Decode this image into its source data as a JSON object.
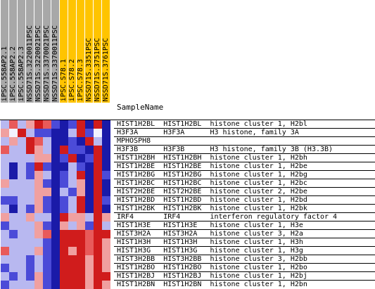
{
  "columns": [
    {
      "label": "iPSC.558AP2.1",
      "highlight": false
    },
    {
      "label": "iPSC.558AP2.2",
      "highlight": false
    },
    {
      "label": "iPSC.558AP2.3",
      "highlight": false
    },
    {
      "label": "NSSD71S.3220011PSC",
      "highlight": false
    },
    {
      "label": "NSSD71S.3220021PSC",
      "highlight": false
    },
    {
      "label": "NSSD71S.3370021PSC",
      "highlight": false
    },
    {
      "label": "NSSD71S.3370011PSC",
      "highlight": false
    },
    {
      "label": "iPSC.S78.1",
      "highlight": true
    },
    {
      "label": "iPSC.S78.2",
      "highlight": true
    },
    {
      "label": "iPSC.S78.3",
      "highlight": true
    },
    {
      "label": "NSSD71S.3351PSC",
      "highlight": true
    },
    {
      "label": "NSSD71S.3751PSC",
      "highlight": true
    },
    {
      "label": "NSSD71S.3761PSC",
      "highlight": true
    }
  ],
  "sample_name_label": "SampleName",
  "rows": [
    {
      "text": "HIST1H2BL  HIST1H2BL  histone cluster 1, H2bl"
    },
    {
      "text": "H3F3A      H3F3A      H3 histone, family 3A"
    },
    {
      "text": "MPHOSPH8"
    },
    {
      "text": "H3F3B      H3F3B      H3 histone, family 3B (H3.3B)"
    },
    {
      "text": "HIST1H2BH  HIST1H2BH  histone cluster 1, H2bh"
    },
    {
      "text": "HIST1H2BE  HIST1H2BE  histone cluster 1, H2be"
    },
    {
      "text": "HIST1H2BG  HIST1H2BG  histone cluster 1, H2bg"
    },
    {
      "text": "HIST1H2BC  HIST1H2BC  histone cluster 1, H2bc"
    },
    {
      "text": "HIST2H2BE  HIST2H2BE  histone cluster 2, H2be"
    },
    {
      "text": "HIST1H2BD  HIST1H2BD  histone cluster 1, H2bd"
    },
    {
      "text": "HIST1H2BK  HIST1H2BK  histone cluster 1, H2bk"
    },
    {
      "text": "IRF4       IRF4       interferon regulatory factor 4"
    },
    {
      "text": "HIST1H3E   HIST1H3E   histone cluster 1, H3e"
    },
    {
      "text": "HIST3H2A   HIST3H2A   histone cluster 3, H2a"
    },
    {
      "text": "HIST1H3H   HIST1H3H   histone cluster 1, H3h"
    },
    {
      "text": "HIST1H3G   HIST1H3G   histone cluster 1, H3g"
    },
    {
      "text": "HIST3H2BB  HIST3H2BB  histone cluster 3, H2bb"
    },
    {
      "text": "HIST1H2BO  HIST1H2BO  histone cluster 1, H2bo"
    },
    {
      "text": "HIST1H2BJ  HIST1H2BJ  histone cluster 1, H2bj"
    },
    {
      "text": "HIST1H2BN  HIST1H2BN  histone cluster 1, H2bn"
    }
  ],
  "heatmap": [
    [
      "lb",
      "p",
      "lb",
      "lr",
      "r",
      "p",
      "b",
      "db",
      "b",
      "r",
      "db",
      "r",
      "db"
    ],
    [
      "lr",
      "w",
      "r",
      "lb",
      "b",
      "b",
      "db",
      "db",
      "lb",
      "r",
      "b",
      "w",
      "db"
    ],
    [
      "lb",
      "lr",
      "lb",
      "r",
      "p",
      "lb",
      "db",
      "db",
      "b",
      "db",
      "r",
      "lb",
      "db"
    ],
    [
      "p",
      "lb",
      "lb",
      "r",
      "lr",
      "lb",
      "db",
      "r",
      "b",
      "b",
      "db",
      "r",
      "db"
    ],
    [
      "lb",
      "lb",
      "lb",
      "lb",
      "lr",
      "lr",
      "db",
      "b",
      "r",
      "db",
      "b",
      "r",
      "db"
    ],
    [
      "lb",
      "db",
      "lb",
      "b",
      "r",
      "b",
      "db",
      "db",
      "lb",
      "b",
      "db",
      "r",
      "db"
    ],
    [
      "lb",
      "db",
      "lb",
      "b",
      "lr",
      "lb",
      "db",
      "b",
      "lb",
      "r",
      "db",
      "r",
      "b"
    ],
    [
      "lr",
      "lb",
      "lb",
      "lb",
      "lr",
      "b",
      "db",
      "b",
      "lb",
      "lr",
      "db",
      "r",
      "db"
    ],
    [
      "lb",
      "lb",
      "lb",
      "lb",
      "lr",
      "lr",
      "db",
      "lb",
      "b",
      "lr",
      "db",
      "r",
      "db"
    ],
    [
      "b",
      "b",
      "lb",
      "lb",
      "lr",
      "b",
      "db",
      "b",
      "lb",
      "r",
      "db",
      "r",
      "b"
    ],
    [
      "lb",
      "db",
      "lb",
      "b",
      "lr",
      "b",
      "db",
      "b",
      "lb",
      "r",
      "db",
      "r",
      "db"
    ],
    [
      "lr",
      "lb",
      "lb",
      "lr",
      "lb",
      "lb",
      "db",
      "r",
      "lr",
      "lr",
      "lb",
      "r",
      "lr"
    ],
    [
      "b",
      "lb",
      "lb",
      "lb",
      "lr",
      "b",
      "db",
      "lr",
      "lb",
      "lr",
      "b",
      "r",
      "lb"
    ],
    [
      "lb",
      "b",
      "lb",
      "lb",
      "lr",
      "p",
      "db",
      "r",
      "r",
      "r",
      "p",
      "r",
      "r"
    ],
    [
      "lb",
      "lb",
      "lb",
      "lb",
      "lb",
      "b",
      "db",
      "r",
      "r",
      "r",
      "p",
      "r",
      "lr"
    ],
    [
      "p",
      "lb",
      "lb",
      "lb",
      "lr",
      "b",
      "db",
      "r",
      "lr",
      "r",
      "p",
      "r",
      "lr"
    ],
    [
      "lb",
      "lb",
      "lb",
      "b",
      "lb",
      "b",
      "db",
      "r",
      "r",
      "r",
      "lr",
      "r",
      "lr"
    ],
    [
      "b",
      "lb",
      "lb",
      "b",
      "lb",
      "b",
      "db",
      "r",
      "r",
      "r",
      "lr",
      "r",
      "lr"
    ],
    [
      "lb",
      "b",
      "lb",
      "b",
      "lr",
      "b",
      "db",
      "r",
      "r",
      "r",
      "lr",
      "r",
      "r"
    ],
    [
      "b",
      "lb",
      "lb",
      "lb",
      "lr",
      "b",
      "db",
      "r",
      "r",
      "r",
      "lr",
      "r",
      "lr"
    ]
  ],
  "palette": {
    "db": "#1a1aa8",
    "b": "#4b4bd8",
    "lb": "#b8b8f0",
    "w": "#f2f2ff",
    "lr": "#f0a0a0",
    "p": "#e85a5a",
    "r": "#d01c1c"
  },
  "colors": {
    "header_normal": "#a8a8a8",
    "header_highlight": "#ffc400"
  }
}
